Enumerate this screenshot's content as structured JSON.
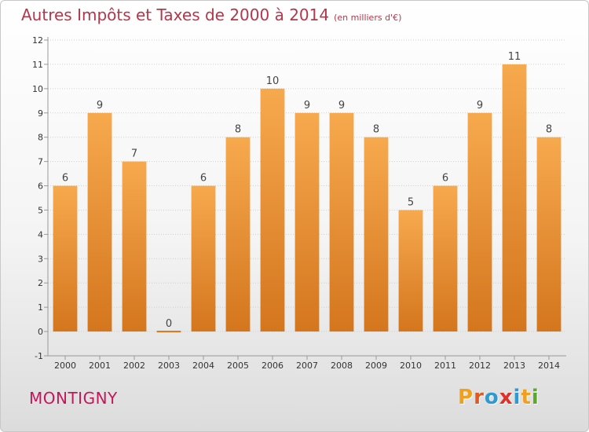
{
  "header": {
    "title": "Autres Impôts et Taxes de 2000 à 2014",
    "unit": "(en milliers d'€)"
  },
  "footer": {
    "place": "MONTIGNY",
    "logo": "Proxiti",
    "logo_colors": [
      "#f0a020",
      "#e05a20",
      "#2e9ad0",
      "#e0302a",
      "#2e9ad0",
      "#f0a020",
      "#5aaa2a"
    ]
  },
  "colors": {
    "bar_light": "#f7a94e",
    "bar_dark": "#d4761e",
    "grid": "#d0d0d0",
    "axis_text": "#333333",
    "title": "#b5364a",
    "place": "#c2185b"
  },
  "chart_data": {
    "type": "bar",
    "categories": [
      "2000",
      "2001",
      "2002",
      "2003",
      "2004",
      "2005",
      "2006",
      "2007",
      "2008",
      "2009",
      "2010",
      "2011",
      "2012",
      "2013",
      "2014"
    ],
    "values": [
      6,
      9,
      7,
      0,
      6,
      8,
      10,
      9,
      9,
      8,
      5,
      6,
      9,
      11,
      8
    ],
    "data_labels": [
      "6",
      "9",
      "7",
      "0",
      "6",
      "8",
      "10",
      "9",
      "9",
      "8",
      "5",
      "6",
      "9",
      "11",
      "8"
    ],
    "y_ticks": [
      "-1",
      "0",
      "1",
      "2",
      "3",
      "4",
      "5",
      "6",
      "7",
      "8",
      "9",
      "10",
      "11",
      "12"
    ],
    "ylim": [
      -1,
      12
    ],
    "grid": true,
    "title": "Autres Impôts et Taxes de 2000 à 2014",
    "unit": "(en milliers d'€)"
  }
}
